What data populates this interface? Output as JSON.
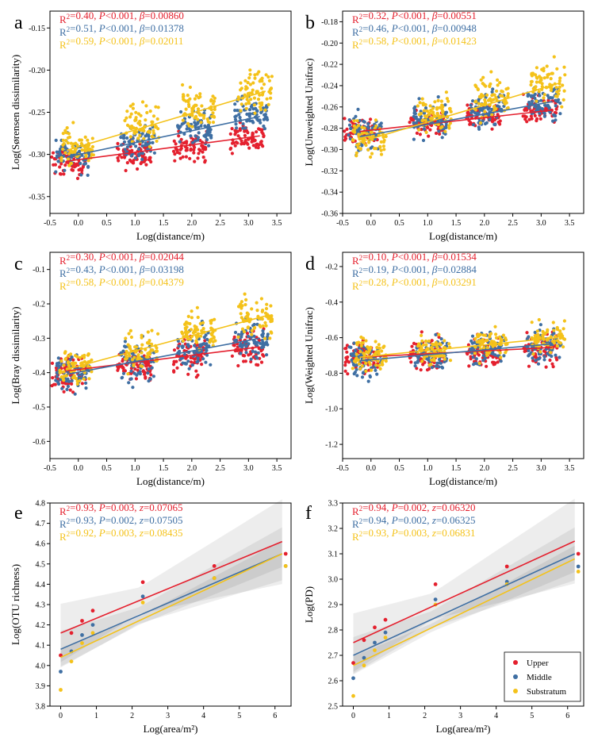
{
  "colors": {
    "upper": "#e4202e",
    "middle": "#3f6fa3",
    "substratum": "#f4c21a",
    "axis": "#000000"
  },
  "legend": {
    "entries": [
      "Upper",
      "Middle",
      "Substratum"
    ]
  },
  "chart_data": [
    {
      "panel": "a",
      "type": "scatter",
      "xlabel": "Log(distance/m)",
      "ylabel": "Log(Sørensen dissimilarity)",
      "xlim": [
        -0.5,
        3.75
      ],
      "ylim": [
        -0.37,
        -0.13
      ],
      "xticks": [
        -0.5,
        0.0,
        0.5,
        1.0,
        1.5,
        2.0,
        2.5,
        3.0,
        3.5
      ],
      "yticks": [
        -0.35,
        -0.3,
        -0.25,
        -0.2,
        -0.15
      ],
      "tick_decimals": 2,
      "stats": [
        {
          "r2": "0.40",
          "p": "<0.001",
          "coef_symbol": "β",
          "coef": "0.00860"
        },
        {
          "r2": "0.51",
          "p": "<0.001",
          "coef_symbol": "β",
          "coef": "0.01378"
        },
        {
          "r2": "0.59",
          "p": "<0.001",
          "coef_symbol": "β",
          "coef": "0.02011"
        }
      ],
      "x_groups": [
        -0.1,
        1.05,
        2.05,
        3.05
      ],
      "series": [
        {
          "name": "Upper",
          "fit": [
            [
              -0.2,
              -0.308
            ],
            [
              3.2,
              -0.278
            ]
          ],
          "centers": [
            -0.31,
            -0.3,
            -0.29,
            -0.28
          ],
          "spread": 0.03
        },
        {
          "name": "Middle",
          "fit": [
            [
              -0.2,
              -0.303
            ],
            [
              3.2,
              -0.255
            ]
          ],
          "centers": [
            -0.3,
            -0.285,
            -0.27,
            -0.255
          ],
          "spread": 0.035
        },
        {
          "name": "Substratum",
          "fit": [
            [
              -0.2,
              -0.295
            ],
            [
              3.3,
              -0.225
            ]
          ],
          "centers": [
            -0.29,
            -0.265,
            -0.245,
            -0.225
          ],
          "spread": 0.04
        }
      ]
    },
    {
      "panel": "b",
      "type": "scatter",
      "xlabel": "Log(distance/m)",
      "ylabel": "Log(Unweighted Unifrac)",
      "xlim": [
        -0.5,
        3.75
      ],
      "ylim": [
        -0.36,
        -0.17
      ],
      "xticks": [
        -0.5,
        0.0,
        0.5,
        1.0,
        1.5,
        2.0,
        2.5,
        3.0,
        3.5
      ],
      "yticks": [
        -0.36,
        -0.34,
        -0.32,
        -0.3,
        -0.28,
        -0.26,
        -0.24,
        -0.22,
        -0.2,
        -0.18
      ],
      "tick_decimals": 2,
      "stats": [
        {
          "r2": "0.32",
          "p": "<0.001",
          "coef_symbol": "β",
          "coef": "0.00551"
        },
        {
          "r2": "0.46",
          "p": "<0.001",
          "coef_symbol": "β",
          "coef": "0.00948"
        },
        {
          "r2": "0.58",
          "p": "<0.001",
          "coef_symbol": "β",
          "coef": "0.01423"
        }
      ],
      "x_groups": [
        -0.1,
        1.05,
        2.05,
        3.05
      ],
      "series": [
        {
          "name": "Upper",
          "fit": [
            [
              -0.2,
              -0.283
            ],
            [
              3.2,
              -0.263
            ]
          ],
          "centers": [
            -0.282,
            -0.275,
            -0.268,
            -0.262
          ],
          "spread": 0.022
        },
        {
          "name": "Middle",
          "fit": [
            [
              -0.2,
              -0.288
            ],
            [
              3.2,
              -0.255
            ]
          ],
          "centers": [
            -0.285,
            -0.272,
            -0.262,
            -0.255
          ],
          "spread": 0.028
        },
        {
          "name": "Substratum",
          "fit": [
            [
              -0.2,
              -0.293
            ],
            [
              3.3,
              -0.238
            ]
          ],
          "centers": [
            -0.29,
            -0.268,
            -0.252,
            -0.238
          ],
          "spread": 0.032
        }
      ]
    },
    {
      "panel": "c",
      "type": "scatter",
      "xlabel": "Log(distance/m)",
      "ylabel": "Log(Bray dissimilarity)",
      "xlim": [
        -0.5,
        3.75
      ],
      "ylim": [
        -0.65,
        -0.05
      ],
      "xticks": [
        -0.5,
        0.0,
        0.5,
        1.0,
        1.5,
        2.0,
        2.5,
        3.0,
        3.5
      ],
      "yticks": [
        -0.6,
        -0.5,
        -0.4,
        -0.3,
        -0.2,
        -0.1
      ],
      "tick_decimals": 1,
      "stats": [
        {
          "r2": "0.30",
          "p": "<0.001",
          "coef_symbol": "β",
          "coef": "0.02044"
        },
        {
          "r2": "0.43",
          "p": "<0.001",
          "coef_symbol": "β",
          "coef": "0.03198"
        },
        {
          "r2": "0.58",
          "p": "<0.001",
          "coef_symbol": "β",
          "coef": "0.04379"
        }
      ],
      "x_groups": [
        -0.1,
        1.05,
        2.05,
        3.05
      ],
      "series": [
        {
          "name": "Upper",
          "fit": [
            [
              -0.2,
              -0.395
            ],
            [
              3.2,
              -0.325
            ]
          ],
          "centers": [
            -0.4,
            -0.38,
            -0.35,
            -0.33
          ],
          "spread": 0.09
        },
        {
          "name": "Middle",
          "fit": [
            [
              -0.2,
              -0.405
            ],
            [
              3.2,
              -0.3
            ]
          ],
          "centers": [
            -0.4,
            -0.37,
            -0.33,
            -0.3
          ],
          "spread": 0.1
        },
        {
          "name": "Substratum",
          "fit": [
            [
              -0.2,
              -0.39
            ],
            [
              3.3,
              -0.235
            ]
          ],
          "centers": [
            -0.38,
            -0.34,
            -0.28,
            -0.24
          ],
          "spread": 0.1
        }
      ]
    },
    {
      "panel": "d",
      "type": "scatter",
      "xlabel": "Log(distance/m)",
      "ylabel": "Log(Weighted Unifrac)",
      "xlim": [
        -0.5,
        3.75
      ],
      "ylim": [
        -1.28,
        -0.12
      ],
      "xticks": [
        -0.5,
        0.0,
        0.5,
        1.0,
        1.5,
        2.0,
        2.5,
        3.0,
        3.5
      ],
      "yticks": [
        -1.2,
        -1.0,
        -0.8,
        -0.6,
        -0.4,
        -0.2
      ],
      "tick_decimals": 1,
      "stats": [
        {
          "r2": "0.10",
          "p": "<0.001",
          "coef_symbol": "β",
          "coef": "0.01534"
        },
        {
          "r2": "0.19",
          "p": "<0.001",
          "coef_symbol": "β",
          "coef": "0.02884"
        },
        {
          "r2": "0.28",
          "p": "<0.001",
          "coef_symbol": "β",
          "coef": "0.03291"
        }
      ],
      "x_groups": [
        -0.1,
        1.05,
        2.05,
        3.05
      ],
      "series": [
        {
          "name": "Upper",
          "fit": [
            [
              -0.2,
              -0.71
            ],
            [
              3.2,
              -0.655
            ]
          ],
          "centers": [
            -0.71,
            -0.7,
            -0.68,
            -0.66
          ],
          "spread": 0.16
        },
        {
          "name": "Middle",
          "fit": [
            [
              -0.2,
              -0.73
            ],
            [
              3.2,
              -0.635
            ]
          ],
          "centers": [
            -0.72,
            -0.69,
            -0.67,
            -0.64
          ],
          "spread": 0.17
        },
        {
          "name": "Substratum",
          "fit": [
            [
              -0.2,
              -0.71
            ],
            [
              3.3,
              -0.6
            ]
          ],
          "centers": [
            -0.7,
            -0.67,
            -0.63,
            -0.6
          ],
          "spread": 0.15
        }
      ]
    },
    {
      "panel": "e",
      "type": "scatter",
      "xlabel": "Log(area/m²)",
      "ylabel": "Log(OTU richness)",
      "xlim": [
        -0.3,
        6.45
      ],
      "ylim": [
        3.8,
        4.8
      ],
      "xticks": [
        0,
        1,
        2,
        3,
        4,
        5,
        6
      ],
      "yticks": [
        3.8,
        3.9,
        4.0,
        4.1,
        4.2,
        4.3,
        4.4,
        4.5,
        4.6,
        4.7,
        4.8
      ],
      "tick_decimals": 1,
      "stats": [
        {
          "r2": "0.93",
          "p": "0.003",
          "coef_symbol": "z",
          "coef": "0.07065"
        },
        {
          "r2": "0.93",
          "p": "0.002",
          "coef_symbol": "z",
          "coef": "0.07505"
        },
        {
          "r2": "0.92",
          "p": "0.003",
          "coef_symbol": "z",
          "coef": "0.08435"
        }
      ],
      "series": [
        {
          "name": "Upper",
          "x": [
            0,
            0.3,
            0.6,
            0.9,
            2.3,
            4.3,
            6.3
          ],
          "y": [
            4.05,
            4.16,
            4.22,
            4.27,
            4.41,
            4.49,
            4.55
          ],
          "fit": [
            [
              0,
              4.16
            ],
            [
              6.2,
              4.61
            ]
          ]
        },
        {
          "name": "Middle",
          "x": [
            0,
            0.3,
            0.6,
            0.9,
            2.3,
            4.3,
            6.3
          ],
          "y": [
            3.97,
            4.07,
            4.15,
            4.2,
            4.34,
            4.43,
            4.49
          ],
          "fit": [
            [
              0,
              4.08
            ],
            [
              6.2,
              4.55
            ]
          ]
        },
        {
          "name": "Substratum",
          "x": [
            0,
            0.3,
            0.6,
            0.9,
            2.3,
            4.3,
            6.3
          ],
          "y": [
            3.88,
            4.02,
            4.11,
            4.16,
            4.31,
            4.43,
            4.49
          ],
          "fit": [
            [
              0,
              4.04
            ],
            [
              6.2,
              4.55
            ]
          ]
        }
      ]
    },
    {
      "panel": "f",
      "type": "scatter",
      "xlabel": "Log(area/m²)",
      "ylabel": "Log(PD)",
      "xlim": [
        -0.3,
        6.45
      ],
      "ylim": [
        2.5,
        3.3
      ],
      "xticks": [
        0,
        1,
        2,
        3,
        4,
        5,
        6
      ],
      "yticks": [
        2.5,
        2.6,
        2.7,
        2.8,
        2.9,
        3.0,
        3.1,
        3.2,
        3.3
      ],
      "tick_decimals": 1,
      "stats": [
        {
          "r2": "0.94",
          "p": "0.002",
          "coef_symbol": "z",
          "coef": "0.06320"
        },
        {
          "r2": "0.94",
          "p": "0.002",
          "coef_symbol": "z",
          "coef": "0.06325"
        },
        {
          "r2": "0.93",
          "p": "0.003",
          "coef_symbol": "z",
          "coef": "0.06831"
        }
      ],
      "series": [
        {
          "name": "Upper",
          "x": [
            0,
            0.3,
            0.6,
            0.9,
            2.3,
            4.3,
            6.3
          ],
          "y": [
            2.67,
            2.76,
            2.81,
            2.84,
            2.98,
            3.05,
            3.1
          ],
          "fit": [
            [
              0,
              2.75
            ],
            [
              6.2,
              3.15
            ]
          ]
        },
        {
          "name": "Middle",
          "x": [
            0,
            0.3,
            0.6,
            0.9,
            2.3,
            4.3,
            6.3
          ],
          "y": [
            2.61,
            2.69,
            2.75,
            2.79,
            2.92,
            2.99,
            3.05
          ],
          "fit": [
            [
              0,
              2.7
            ],
            [
              6.2,
              3.1
            ]
          ]
        },
        {
          "name": "Substratum",
          "x": [
            0,
            0.3,
            0.6,
            0.9,
            2.3,
            4.3,
            6.3
          ],
          "y": [
            2.54,
            2.66,
            2.72,
            2.77,
            2.9,
            2.98,
            3.03
          ],
          "fit": [
            [
              0,
              2.66
            ],
            [
              6.2,
              3.08
            ]
          ]
        }
      ]
    }
  ]
}
